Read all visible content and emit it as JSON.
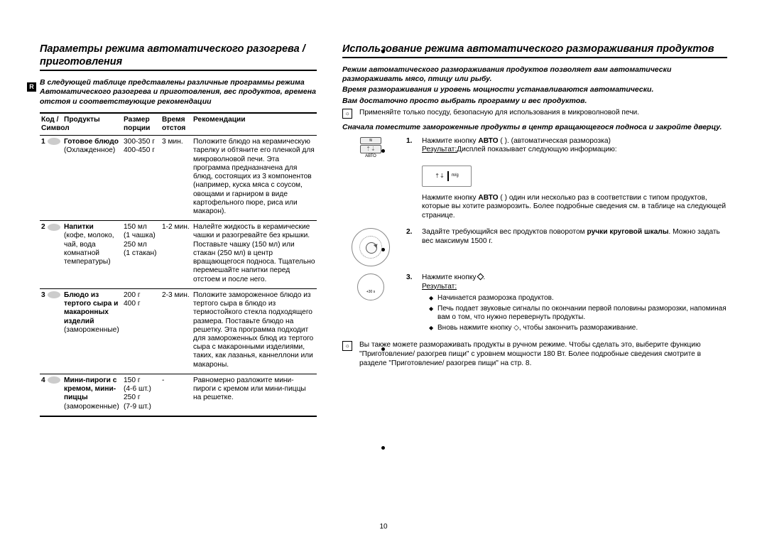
{
  "page_number": "10",
  "lang_badge": "R",
  "left": {
    "title": "Параметры режима автоматического разогрева / приготовления",
    "intro": "В следующей таблице представлены различные программы режима Автоматического разогрева и приготовления, вес продуктов, времена отстоя и соответствующие рекомендации",
    "headers": {
      "code": "Код / Символ",
      "product": "Продукты",
      "size": "Размер порции",
      "time": "Время отстоя",
      "rec": "Рекомендации"
    },
    "rows": [
      {
        "num": "1",
        "name": "Готовое блюдо",
        "name_sub": "(Охлажденное)",
        "size": "300-350 г\n400-450 г",
        "time": "3 мин.",
        "rec": "Положите блюдо на керамическую тарелку и обтяните его пленкой для микроволновой печи. Эта программа предназначена для блюд, состоящих из 3 компонентов (например, куска мяса с соусом, овощами и гарниром в виде картофельного пюре, риса или макарон)."
      },
      {
        "num": "2",
        "name": "Напитки",
        "name_sub": "(кофе, молоко, чай, вода комнатной температуры)",
        "size": "150 мл\n(1 чашка)\n250 мл\n(1 стакан)",
        "time": "1-2 мин.",
        "rec": "Налейте жидкость в керамические чашки и разогревайте без крышки. Поставьте чашку (150 мл) или стакан (250 мл) в центр вращающегося подноса. Тщательно перемешайте напитки перед отстоем и после него."
      },
      {
        "num": "3",
        "name": "Блюдо из тертого сыра и макаронных изделий",
        "name_sub": "(замороженные)",
        "size": "200 г\n400 г",
        "time": "2-3 мин.",
        "rec": "Положите замороженное блюдо из тертого сыра в блюдо из термостойкого стекла подходящего размера. Поставьте блюдо на решетку. Эта программа подходит для замороженных блюд из тертого сыра с макаронными изделиями, таких, как лазанья, каннеллони или макароны."
      },
      {
        "num": "4",
        "name": "Мини-пироги с кремом, мини-пиццы",
        "name_sub": "(замороженные)",
        "size": "150 г\n(4-6 шт.)\n250 г\n(7-9 шт.)",
        "time": "-",
        "rec": "Равномерно разложите мини-пироги с кремом или мини-пиццы на решетке."
      }
    ]
  },
  "right": {
    "title": "Использование режима автоматического размораживания продуктов",
    "p1": "Режим автоматического размораживания продуктов позволяет вам автоматически размораживать мясо, птицу или рыбу.",
    "p2": "Время размораживания и уровень мощности устанавливаются автоматически.",
    "p3": "Вам достаточно просто выбрать программу и вес продуктов.",
    "note1_icon": "☼",
    "note1": "Применяйте только посуду, безопасную для использования в микроволновой печи.",
    "p4": "Сначала поместите замороженные продукты в центр вращающегося подноса и закройте дверцу.",
    "steps": [
      {
        "num": "1.",
        "pre": "Нажмите кнопку ",
        "btn": "АВТО",
        "tail": " ( ). (автоматическая разморозка)",
        "result_label": "Результат:",
        "result_text": "Дисплей показывает следующую информацию:",
        "display_text": "m/g",
        "graphic": "auto-button"
      },
      {
        "num": "",
        "pre": "Нажмите кнопку ",
        "btn": "АВТО",
        "tail": " ( ) один или несколько раз в соответствии с типом продуктов, которые вы хотите разморозить. Более подробные сведения см. в таблице на следующей странице.",
        "graphic": "none"
      },
      {
        "num": "2.",
        "text_pre": "Задайте требующийся вес продуктов поворотом ",
        "knob": "ручки круговой шкалы",
        "text_tail": ". Можно задать вес максимум 1500 г.",
        "graphic": "dial"
      },
      {
        "num": "3.",
        "pre": "Нажмите кнопку ",
        "glyph": "play",
        "tail": ".",
        "result_label": "Результат:",
        "bullets": [
          "Начинается разморозка продуктов.",
          "Печь подает звуковые сигналы по окончании первой половины разморозки, напоминая вам о том, что нужно перевернуть продукты.",
          "Вновь нажмите кнопку ◇, чтобы закончить размораживание."
        ],
        "graphic": "dial-small",
        "dial_label": "+30 s"
      }
    ],
    "note2_icon": "☼",
    "note2": "Вы также можете размораживать продукты в ручном режиме. Чтобы сделать это, выберите функцию \"Приготовление/ разогрев пищи\" с уровнем мощности 180 Вт. Более подробные сведения смотрите в разделе \"Приготовление/ разогрев пищи\" на стр. 8."
  }
}
